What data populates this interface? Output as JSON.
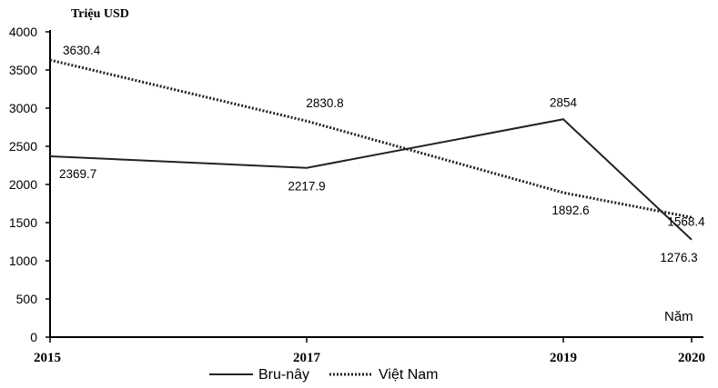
{
  "chart_data": {
    "type": "line",
    "title": "",
    "ylabel": "Triệu USD",
    "xlabel": "Năm",
    "x": [
      2015,
      2017,
      2019,
      2020
    ],
    "x_tick_labels": [
      "2015",
      "2017",
      "2019",
      "2020"
    ],
    "ylim": [
      0,
      4000
    ],
    "y_ticks": [
      0,
      500,
      1000,
      1500,
      2000,
      2500,
      3000,
      3500,
      4000
    ],
    "y_tick_labels": [
      "0",
      "500",
      "1000",
      "1500",
      "2000",
      "2500",
      "3000",
      "3500",
      "4000"
    ],
    "grid": false,
    "legend_position": "bottom",
    "series": [
      {
        "name": "Bru-nây",
        "style": "solid",
        "color": "#222222",
        "values": [
          2369.7,
          2217.9,
          2854,
          1276.3
        ],
        "labels": [
          "2369.7",
          "2217.9",
          "2854",
          "1276.3"
        ]
      },
      {
        "name": "Việt Nam",
        "style": "dotted",
        "color": "#222222",
        "values": [
          3630.4,
          2830.8,
          1892.6,
          1568.4
        ],
        "labels": [
          "3630.4",
          "2830.8",
          "1892.6",
          "1568.4"
        ]
      }
    ]
  }
}
